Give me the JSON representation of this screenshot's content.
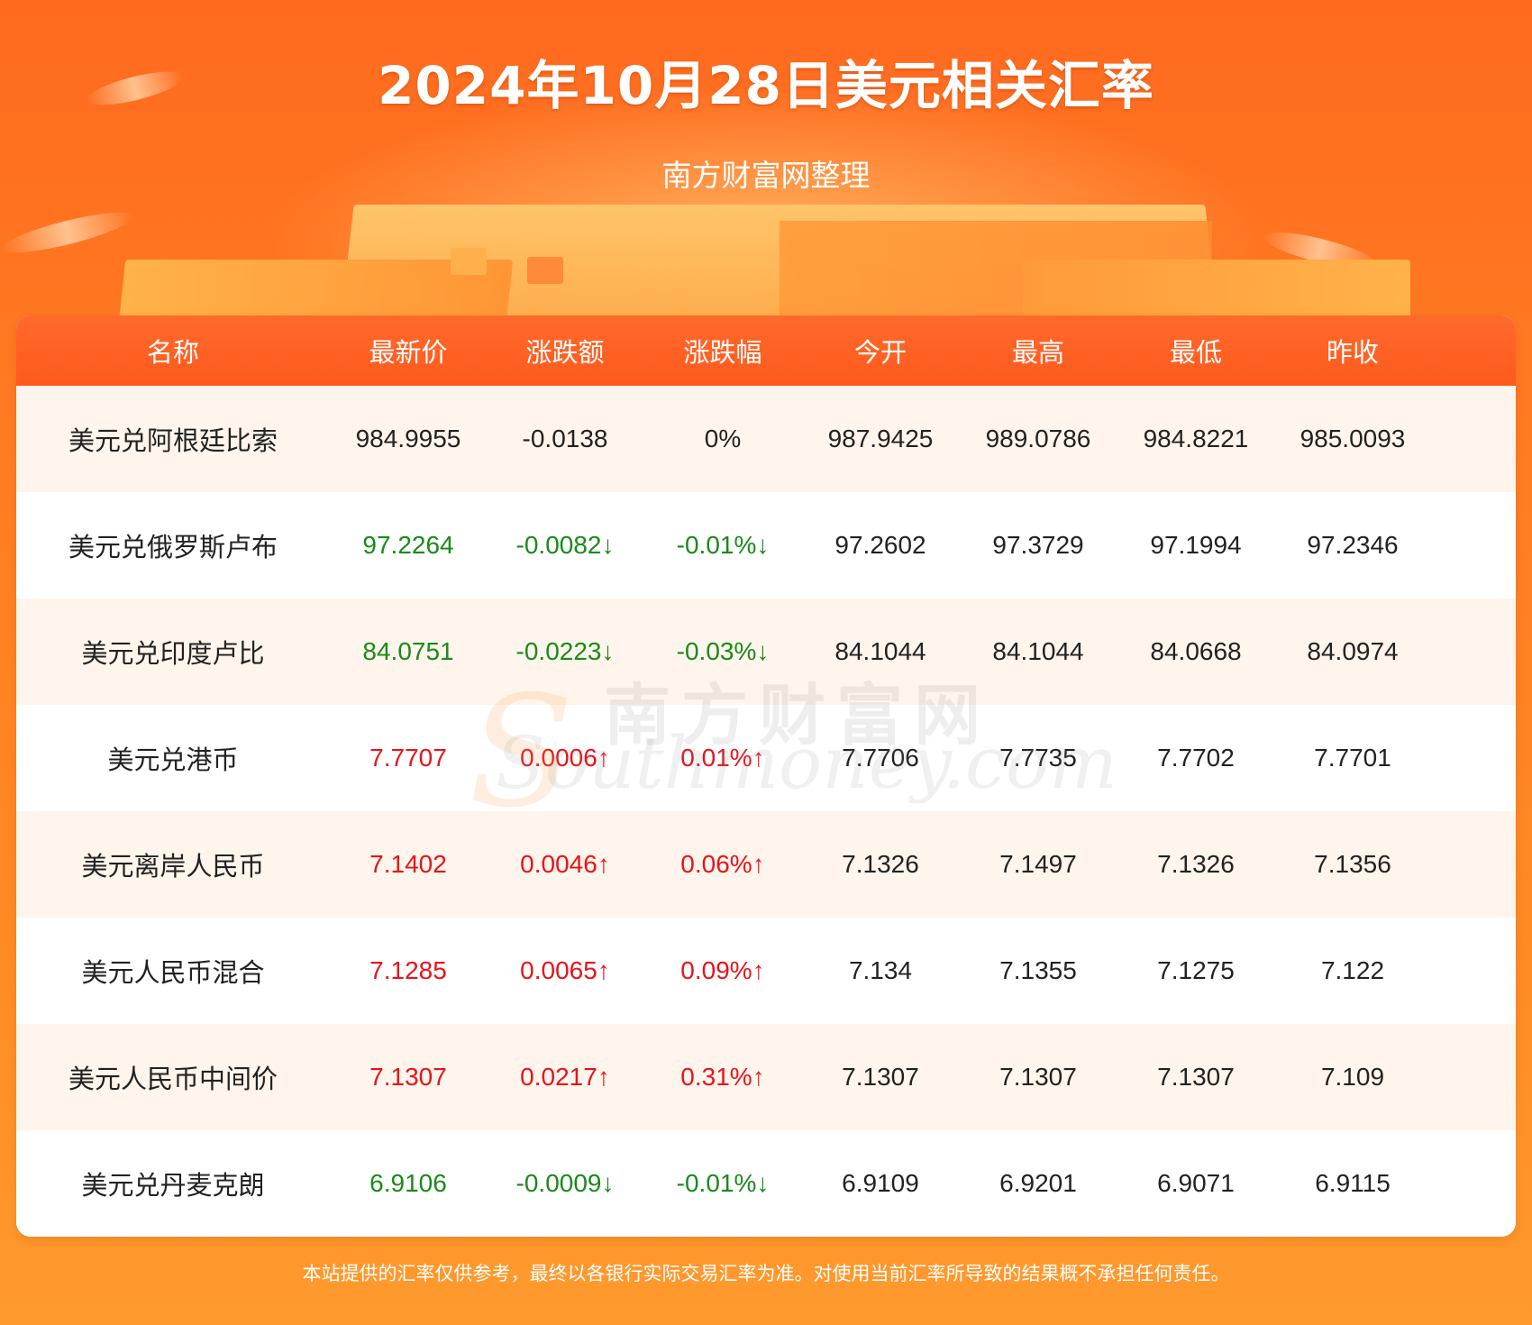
{
  "header": {
    "title": "2024年10月28日美元相关汇率",
    "subtitle": "南方财富网整理"
  },
  "watermark": {
    "cn": "南方财富网",
    "en": "Southmoney.com"
  },
  "colors": {
    "background": "#ff7a22",
    "header_row": "#ff5a1e",
    "up": "#e8131b",
    "down": "#1a8a1a",
    "row_alt": "#fff5ec"
  },
  "chart_data": {
    "type": "table",
    "columns": [
      "名称",
      "最新价",
      "涨跌额",
      "涨跌幅",
      "今开",
      "最高",
      "最低",
      "昨收"
    ],
    "rows": [
      {
        "name": "美元兑阿根廷比索",
        "latest": "984.9955",
        "change": "-0.0138",
        "change_pct": "0%",
        "open": "987.9425",
        "high": "989.0786",
        "low": "984.8221",
        "prev_close": "985.0093",
        "trend": "flat"
      },
      {
        "name": "美元兑俄罗斯卢布",
        "latest": "97.2264",
        "change": "-0.0082↓",
        "change_pct": "-0.01%↓",
        "open": "97.2602",
        "high": "97.3729",
        "low": "97.1994",
        "prev_close": "97.2346",
        "trend": "down"
      },
      {
        "name": "美元兑印度卢比",
        "latest": "84.0751",
        "change": "-0.0223↓",
        "change_pct": "-0.03%↓",
        "open": "84.1044",
        "high": "84.1044",
        "low": "84.0668",
        "prev_close": "84.0974",
        "trend": "down"
      },
      {
        "name": "美元兑港币",
        "latest": "7.7707",
        "change": "0.0006↑",
        "change_pct": "0.01%↑",
        "open": "7.7706",
        "high": "7.7735",
        "low": "7.7702",
        "prev_close": "7.7701",
        "trend": "up"
      },
      {
        "name": "美元离岸人民币",
        "latest": "7.1402",
        "change": "0.0046↑",
        "change_pct": "0.06%↑",
        "open": "7.1326",
        "high": "7.1497",
        "low": "7.1326",
        "prev_close": "7.1356",
        "trend": "up"
      },
      {
        "name": "美元人民币混合",
        "latest": "7.1285",
        "change": "0.0065↑",
        "change_pct": "0.09%↑",
        "open": "7.134",
        "high": "7.1355",
        "low": "7.1275",
        "prev_close": "7.122",
        "trend": "up"
      },
      {
        "name": "美元人民币中间价",
        "latest": "7.1307",
        "change": "0.0217↑",
        "change_pct": "0.31%↑",
        "open": "7.1307",
        "high": "7.1307",
        "low": "7.1307",
        "prev_close": "7.109",
        "trend": "up"
      },
      {
        "name": "美元兑丹麦克朗",
        "latest": "6.9106",
        "change": "-0.0009↓",
        "change_pct": "-0.01%↓",
        "open": "6.9109",
        "high": "6.9201",
        "low": "6.9071",
        "prev_close": "6.9115",
        "trend": "down"
      }
    ]
  },
  "footer": {
    "disclaimer": "本站提供的汇率仅供参考，最终以各银行实际交易汇率为准。对使用当前汇率所导致的结果概不承担任何责任。"
  }
}
